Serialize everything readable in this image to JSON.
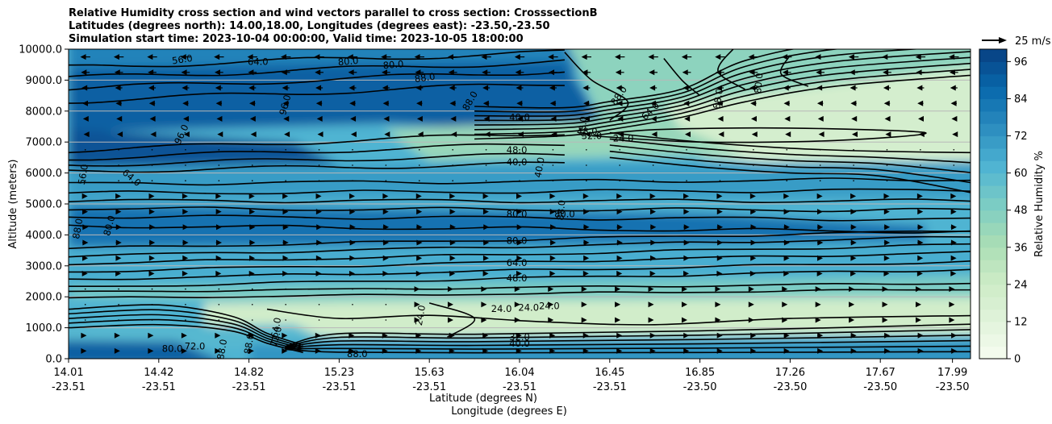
{
  "chart_data": {
    "type": "heatmap",
    "title_lines": [
      "Relative Humidity cross section and wind vectors parallel to cross section: CrosssectionB",
      "Latitudes (degrees north): 14.00,18.00, Longitudes (degrees east): -23.50,-23.50",
      "Simulation start time: 2023-10-04 00:00:00, Valid time: 2023-10-05 18:00:00"
    ],
    "ylabel": "Altitude (meters)",
    "xlabel_lat": "Latitude (degrees N)",
    "xlabel_lon": "Longitude (degrees E)",
    "ylim": [
      0,
      10000
    ],
    "y_ticks": [
      "0.0",
      "1000.0",
      "2000.0",
      "3000.0",
      "4000.0",
      "5000.0",
      "6000.0",
      "7000.0",
      "8000.0",
      "9000.0",
      "10000.0"
    ],
    "x_ticks_lat": [
      "14.01",
      "14.42",
      "14.82",
      "15.23",
      "15.63",
      "16.04",
      "16.45",
      "16.85",
      "17.26",
      "17.67",
      "17.99"
    ],
    "x_ticks_lon": [
      "-23.51",
      "-23.51",
      "-23.51",
      "-23.51",
      "-23.51",
      "-23.51",
      "-23.51",
      "-23.50",
      "-23.50",
      "-23.50",
      "-23.50"
    ],
    "colorbar": {
      "label": "Relative Humidity %",
      "ticks": [
        "0",
        "12",
        "24",
        "36",
        "48",
        "60",
        "72",
        "84",
        "96"
      ],
      "min": 0,
      "max": 100
    },
    "quiver_key_label": "25 m/s",
    "contour_labels": [
      "56.0",
      "64.0",
      "80.0",
      "80.0",
      "88.0",
      "88.0",
      "80.0",
      "88.0",
      "96.0",
      "96.0",
      "88.0",
      "64.0",
      "56.0",
      "48.0",
      "40.0",
      "40.0",
      "48.0",
      "48.0",
      "32.0",
      "24.0",
      "40.0",
      "64.0",
      "80.0",
      "80.0",
      "88.0",
      "88.0",
      "80.0",
      "80.0",
      "64.0",
      "48.0",
      "24.0",
      "24.0",
      "24.0",
      "24.0",
      "32.0",
      "40.0",
      "72.0",
      "80.0",
      "88.0",
      "88.0",
      "72.0",
      "64.0",
      "88.0"
    ],
    "grid": "horizontal",
    "colormap": [
      "#f7fcf0",
      "#e0f3db",
      "#ccebc5",
      "#a8ddb5",
      "#7bccc4",
      "#4eb3d3",
      "#2b8cbe",
      "#0868ac",
      "#084081"
    ]
  }
}
